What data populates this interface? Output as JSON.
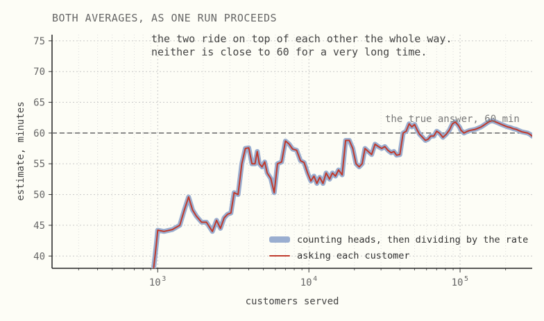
{
  "chart_data": {
    "type": "line",
    "title": "BOTH AVERAGES, AS ONE RUN PROCEEDS",
    "annotations": [
      "the two ride on top of each other the whole way.",
      "neither is close to 60 for a very long time."
    ],
    "xlabel": "customers served",
    "ylabel": "estimate, minutes",
    "xscale": "log",
    "xlim": [
      200,
      300000
    ],
    "ylim": [
      38,
      76
    ],
    "x_ticks": [
      1000,
      10000,
      100000
    ],
    "x_tick_labels": [
      "10",
      "10",
      "10"
    ],
    "x_tick_exponents": [
      "3",
      "4",
      "5"
    ],
    "y_ticks": [
      40,
      45,
      50,
      55,
      60,
      65,
      70,
      75
    ],
    "y_tick_labels": [
      "40",
      "45",
      "50",
      "55",
      "60",
      "65",
      "70",
      "75"
    ],
    "grid": true,
    "reference_line": {
      "y": 60,
      "label": "the true answer, 60 min"
    },
    "legend_position": "bottom-right",
    "series": [
      {
        "name": "counting heads, then dividing by the rate",
        "color": "#9aaed0",
        "x": [
          940,
          960,
          980,
          1000,
          1100,
          1250,
          1400,
          1500,
          1600,
          1700,
          1800,
          1950,
          2100,
          2300,
          2450,
          2600,
          2750,
          2900,
          3050,
          3200,
          3400,
          3600,
          3800,
          4000,
          4200,
          4400,
          4550,
          4700,
          4900,
          5100,
          5300,
          5600,
          5900,
          6200,
          6600,
          7000,
          7400,
          7800,
          8300,
          8800,
          9300,
          9800,
          10300,
          10800,
          11300,
          11800,
          12400,
          13000,
          13700,
          14300,
          15000,
          15700,
          16600,
          17500,
          18500,
          19500,
          20500,
          21500,
          22500,
          23500,
          24700,
          26000,
          27400,
          28800,
          30300,
          31800,
          33300,
          35000,
          36500,
          38000,
          40000,
          42000,
          44000,
          46000,
          48000,
          50000,
          52000,
          54000,
          56500,
          59000,
          61500,
          64000,
          67000,
          70000,
          73000,
          77000,
          81000,
          85000,
          89000,
          93000,
          97000,
          100000,
          101000,
          103000,
          106000,
          110000,
          115000,
          120000,
          126000,
          132000,
          138000,
          144000,
          150000,
          157000,
          164000,
          172000,
          180000,
          188000,
          197000,
          206000,
          215000,
          225000,
          235000,
          245000,
          256000,
          268000,
          280000,
          290000,
          300000
        ],
        "values": [
          38,
          40,
          42,
          44.2,
          44.0,
          44.3,
          45.0,
          47.5,
          49.6,
          47.5,
          46.5,
          45.5,
          45.5,
          44.0,
          45.8,
          44.5,
          46.2,
          46.8,
          47.0,
          50.3,
          50.0,
          55.0,
          57.5,
          57.6,
          55.0,
          55.0,
          57.0,
          55.0,
          54.5,
          55.3,
          53.5,
          52.6,
          50.3,
          55.0,
          55.3,
          58.7,
          58.2,
          57.4,
          57.2,
          55.5,
          55.2,
          53.5,
          52.2,
          53.0,
          51.8,
          52.8,
          51.8,
          53.5,
          52.5,
          53.5,
          53.0,
          54.0,
          53.2,
          58.8,
          58.8,
          57.5,
          55.0,
          54.5,
          55.0,
          57.5,
          57.0,
          56.5,
          58.2,
          57.8,
          57.5,
          57.8,
          57.2,
          56.8,
          57.0,
          56.4,
          56.5,
          60.0,
          60.3,
          61.5,
          61.0,
          61.4,
          60.5,
          59.8,
          59.3,
          58.8,
          59.0,
          59.5,
          59.5,
          60.3,
          60.0,
          59.3,
          59.8,
          60.5,
          61.5,
          61.8,
          61.3,
          60.8,
          60.5,
          60.3,
          60.0,
          60.2,
          60.4,
          60.5,
          60.6,
          60.8,
          61.0,
          61.3,
          61.6,
          61.9,
          62.0,
          61.8,
          61.6,
          61.4,
          61.2,
          61.0,
          60.9,
          60.7,
          60.6,
          60.4,
          60.2,
          60.1,
          60.0,
          59.8,
          59.5
        ],
        "values_note": ""
      },
      {
        "name": "asking each customer",
        "color": "#c0392b"
      }
    ]
  }
}
